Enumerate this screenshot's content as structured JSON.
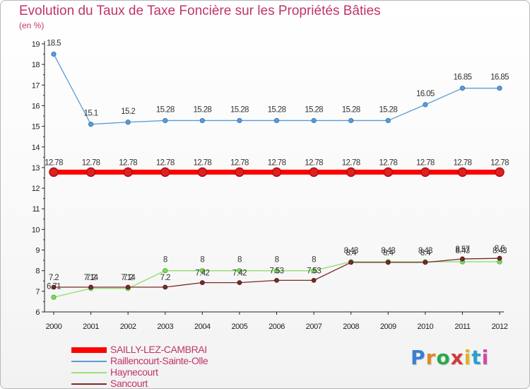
{
  "header": {
    "title": "Evolution du Taux de Taxe Foncière sur les Propriétés Bâties",
    "subtitle": "(en %)"
  },
  "brand": {
    "text": "Proxiti",
    "colors": [
      "#3a7fd0",
      "#e0882a",
      "#2aa84a",
      "#d03a3a",
      "#e0b12a",
      "#2aa0d0",
      "#d04aa0"
    ]
  },
  "chart_data": {
    "type": "line",
    "title": "Evolution du Taux de Taxe Foncière sur les Propriétés Bâties",
    "ylabel": "(en %)",
    "xlabel": "",
    "ylim": [
      6,
      19
    ],
    "y_ticks": [
      "6",
      "7",
      "8",
      "9",
      "10",
      "11",
      "12",
      "13",
      "14",
      "15",
      "16",
      "17",
      "18",
      "19"
    ],
    "categories": [
      "2000",
      "2001",
      "2002",
      "2003",
      "2004",
      "2005",
      "2006",
      "2007",
      "2008",
      "2009",
      "2010",
      "2011",
      "2012"
    ],
    "grid": false,
    "legend_position": "bottom-left",
    "series": [
      {
        "name": "SAILLY-LEZ-CAMBRAI",
        "color": "#ff0000",
        "values": [
          12.78,
          12.78,
          12.78,
          12.78,
          12.78,
          12.78,
          12.78,
          12.78,
          12.78,
          12.78,
          12.78,
          12.78,
          12.78
        ],
        "labels": [
          "12.78",
          "12.78",
          "12.78",
          "12.78",
          "12.78",
          "12.78",
          "12.78",
          "12.78",
          "12.78",
          "12.78",
          "12.78",
          "12.78",
          "12.78"
        ]
      },
      {
        "name": "Raillencourt-Sainte-Olle",
        "color": "#5b9bd5",
        "values": [
          18.5,
          15.1,
          15.2,
          15.28,
          15.28,
          15.28,
          15.28,
          15.28,
          15.28,
          15.28,
          16.05,
          16.85,
          16.85
        ],
        "labels": [
          "18.5",
          "15.1",
          "15.2",
          "15.28",
          "15.28",
          "15.28",
          "15.28",
          "15.28",
          "15.28",
          "15.28",
          "16.05",
          "16.85",
          "16.85"
        ]
      },
      {
        "name": "Haynecourt",
        "color": "#99e07a",
        "values": [
          6.71,
          7.14,
          7.14,
          8,
          8,
          8,
          8,
          8,
          8.43,
          8.43,
          8.43,
          8.43,
          8.43
        ],
        "labels": [
          "6.71",
          "7.14",
          "7.14",
          "8",
          "8",
          "8",
          "8",
          "8",
          "8.43",
          "8.43",
          "8.43",
          "8.43",
          "8.43"
        ]
      },
      {
        "name": "Sancourt",
        "color": "#7a2a2a",
        "values": [
          7.2,
          7.2,
          7.2,
          7.2,
          7.42,
          7.42,
          7.53,
          7.53,
          8.4,
          8.4,
          8.4,
          8.57,
          8.6
        ],
        "labels": [
          "7.2",
          "7.2",
          "7.2",
          "7.2",
          "7.42",
          "7.42",
          "7.53",
          "7.53",
          "8.4",
          "8.4",
          "8.4",
          "8.57",
          "8.6"
        ]
      }
    ]
  }
}
